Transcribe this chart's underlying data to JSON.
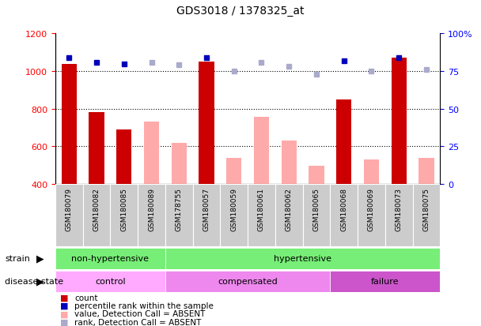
{
  "title": "GDS3018 / 1378325_at",
  "samples": [
    "GSM180079",
    "GSM180082",
    "GSM180085",
    "GSM180089",
    "GSM178755",
    "GSM180057",
    "GSM180059",
    "GSM180061",
    "GSM180062",
    "GSM180065",
    "GSM180068",
    "GSM180069",
    "GSM180073",
    "GSM180075"
  ],
  "count_values": [
    1040,
    780,
    690,
    null,
    null,
    1050,
    null,
    null,
    null,
    null,
    850,
    null,
    1070,
    null
  ],
  "absent_values": [
    null,
    null,
    null,
    730,
    620,
    null,
    540,
    755,
    630,
    495,
    null,
    530,
    null,
    540
  ],
  "percentile_present": [
    84,
    81,
    80,
    null,
    null,
    84,
    null,
    null,
    null,
    null,
    82,
    null,
    84,
    null
  ],
  "percentile_absent": [
    null,
    null,
    null,
    81,
    79,
    null,
    75,
    81,
    78,
    73,
    null,
    75,
    null,
    76
  ],
  "ylim_left": [
    400,
    1200
  ],
  "ylim_right": [
    0,
    100
  ],
  "yticks_left": [
    400,
    600,
    800,
    1000,
    1200
  ],
  "yticks_right": [
    0,
    25,
    50,
    75,
    100
  ],
  "bar_color_present": "#cc0000",
  "bar_color_absent": "#ffaaaa",
  "dot_color_present": "#0000bb",
  "dot_color_absent": "#aaaacc",
  "strain_groups": [
    {
      "label": "non-hypertensive",
      "start": 0,
      "end": 4,
      "color": "#77ee77"
    },
    {
      "label": "hypertensive",
      "start": 4,
      "end": 14,
      "color": "#77ee77"
    }
  ],
  "disease_groups": [
    {
      "label": "control",
      "start": 0,
      "end": 4,
      "color": "#ffaaff"
    },
    {
      "label": "compensated",
      "start": 4,
      "end": 10,
      "color": "#ee88ee"
    },
    {
      "label": "failure",
      "start": 10,
      "end": 14,
      "color": "#cc55cc"
    }
  ],
  "legend_items": [
    {
      "label": "count",
      "color": "#cc0000"
    },
    {
      "label": "percentile rank within the sample",
      "color": "#0000bb"
    },
    {
      "label": "value, Detection Call = ABSENT",
      "color": "#ffaaaa"
    },
    {
      "label": "rank, Detection Call = ABSENT",
      "color": "#aaaacc"
    }
  ]
}
